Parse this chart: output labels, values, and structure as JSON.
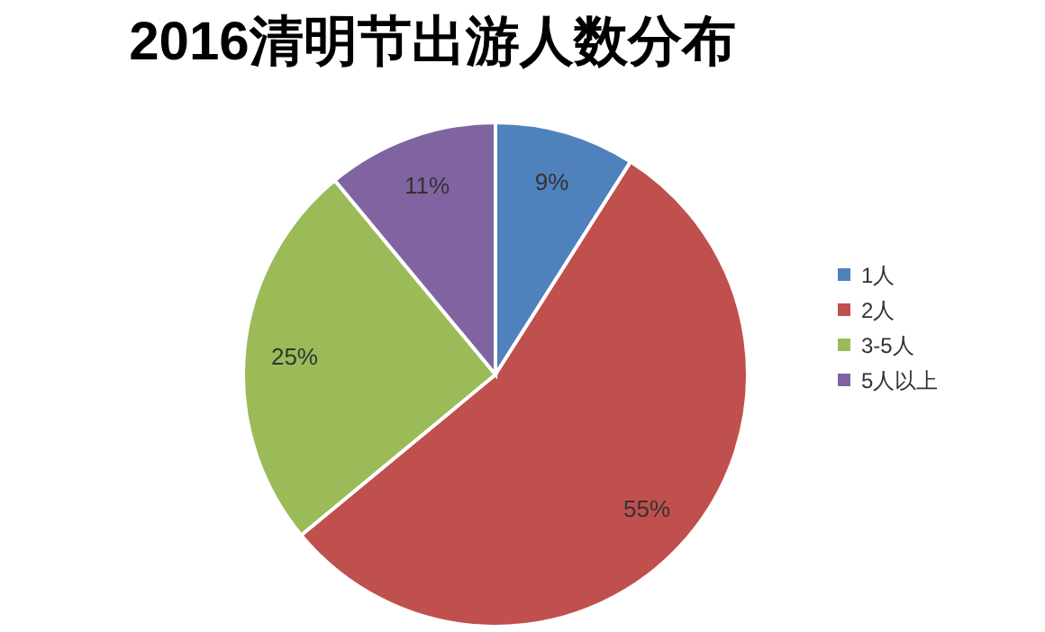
{
  "chart_data": {
    "type": "pie",
    "title": "2016清明节出游人数分布",
    "categories": [
      "1人",
      "2人",
      "3-5人",
      "5人以上"
    ],
    "values": [
      9,
      55,
      25,
      11
    ],
    "colors": [
      "#4f81bd",
      "#c0504d",
      "#9bbb59",
      "#8064a2"
    ],
    "value_labels": [
      "9%",
      "55%",
      "25%",
      "11%"
    ],
    "legend": "right"
  }
}
